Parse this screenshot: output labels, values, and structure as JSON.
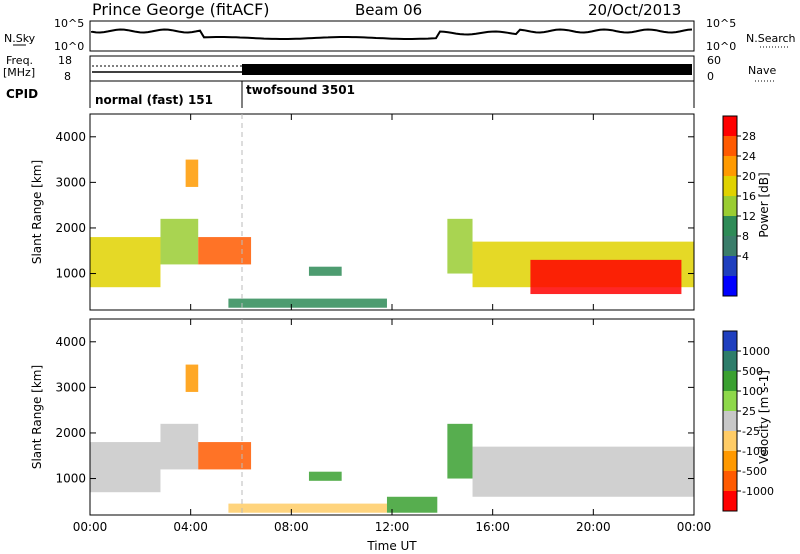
{
  "header": {
    "station": "Prince George (fitACF)",
    "beam": "Beam 06",
    "date": "20/Oct/2013"
  },
  "top_panels": {
    "nsky_label": "N.Sky",
    "nsky_top_tick": "10^5",
    "nsky_bottom_tick": "10^0",
    "nsearch_label": "N.Search",
    "nsearch_top_tick": "10^5",
    "nsearch_bottom_tick": "10^0",
    "freq_label": "Freq.",
    "freq_unit": "[MHz]",
    "freq_top_tick": "18",
    "freq_bottom_tick": "8",
    "nave_label": "Nave",
    "nave_top_tick": "60",
    "nave_bottom_tick": "0",
    "cpid_label": "CPID",
    "cpid_segments": [
      {
        "label": "normal (fast) 151",
        "start_hour": 0,
        "end_hour": 6
      },
      {
        "label": "twofsound 3501",
        "start_hour": 6,
        "end_hour": 24
      }
    ]
  },
  "chart_data": [
    {
      "type": "heatmap",
      "title": "Power",
      "ylabel": "Slant Range [km]",
      "xlabel": "Time UT",
      "xlim": [
        0,
        24
      ],
      "ylim": [
        200,
        4500
      ],
      "x_ticks": [
        "00:00",
        "04:00",
        "08:00",
        "12:00",
        "16:00",
        "20:00",
        "00:00"
      ],
      "y_ticks": [
        "1000",
        "2000",
        "3000",
        "4000"
      ],
      "colorbar": {
        "label": "Power [dB]",
        "ticks": [
          "28",
          "24",
          "20",
          "16",
          "12",
          "8",
          "4"
        ],
        "colors": [
          "#ff0000",
          "#ff5a00",
          "#ff9a00",
          "#e0d200",
          "#9acd32",
          "#2e8b57",
          "#3a7d6a",
          "#1f3fbf",
          "#0000ff"
        ]
      },
      "regions": [
        {
          "t0": 0.0,
          "t1": 2.8,
          "r0": 700,
          "r1": 1800,
          "value": 16
        },
        {
          "t0": 2.8,
          "t1": 4.3,
          "r0": 1200,
          "r1": 2200,
          "value": 12
        },
        {
          "t0": 3.8,
          "t1": 4.3,
          "r0": 2900,
          "r1": 3500,
          "value": 20
        },
        {
          "t0": 4.3,
          "t1": 6.4,
          "r0": 1200,
          "r1": 1800,
          "value": 24
        },
        {
          "t0": 8.7,
          "t1": 10.0,
          "r0": 950,
          "r1": 1150,
          "value": 8
        },
        {
          "t0": 5.5,
          "t1": 11.8,
          "r0": 250,
          "r1": 450,
          "value": 8
        },
        {
          "t0": 14.2,
          "t1": 15.2,
          "r0": 1000,
          "r1": 2200,
          "value": 12
        },
        {
          "t0": 15.2,
          "t1": 24.0,
          "r0": 700,
          "r1": 1700,
          "value": 16
        },
        {
          "t0": 17.5,
          "t1": 23.5,
          "r0": 550,
          "r1": 1300,
          "value": 28
        }
      ]
    },
    {
      "type": "heatmap",
      "title": "Velocity",
      "ylabel": "Slant Range [km]",
      "xlabel": "Time UT",
      "xlim": [
        0,
        24
      ],
      "ylim": [
        200,
        4500
      ],
      "x_ticks": [
        "00:00",
        "04:00",
        "08:00",
        "12:00",
        "16:00",
        "20:00",
        "00:00"
      ],
      "y_ticks": [
        "1000",
        "2000",
        "3000",
        "4000"
      ],
      "colorbar": {
        "label": "Velocity [m s-1]",
        "ticks": [
          "1000",
          "500",
          "100",
          "25",
          "-25",
          "-100",
          "-500",
          "-1000"
        ],
        "colors": [
          "#1f3fbf",
          "#2e7d6a",
          "#3aa030",
          "#8ed84a",
          "#c8c8c8",
          "#ffcc66",
          "#ff9900",
          "#ff5a00",
          "#ff0000"
        ]
      },
      "regions": [
        {
          "t0": 0.0,
          "t1": 2.8,
          "r0": 700,
          "r1": 1800,
          "value": 0
        },
        {
          "t0": 2.8,
          "t1": 4.3,
          "r0": 1200,
          "r1": 2200,
          "value": 0
        },
        {
          "t0": 3.8,
          "t1": 4.3,
          "r0": 2900,
          "r1": 3500,
          "value": -500
        },
        {
          "t0": 4.3,
          "t1": 6.4,
          "r0": 1200,
          "r1": 1800,
          "value": -1000
        },
        {
          "t0": 8.7,
          "t1": 10.0,
          "r0": 950,
          "r1": 1150,
          "value": 100
        },
        {
          "t0": 5.5,
          "t1": 11.8,
          "r0": 250,
          "r1": 450,
          "value": -100
        },
        {
          "t0": 11.8,
          "t1": 13.8,
          "r0": 250,
          "r1": 600,
          "value": 100
        },
        {
          "t0": 14.2,
          "t1": 15.2,
          "r0": 1000,
          "r1": 2200,
          "value": 100
        },
        {
          "t0": 15.2,
          "t1": 24.0,
          "r0": 600,
          "r1": 1700,
          "value": 0
        }
      ]
    }
  ]
}
